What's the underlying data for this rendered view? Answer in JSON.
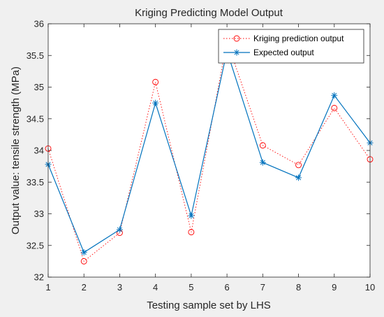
{
  "chart_data": {
    "type": "line",
    "title": "Kriging Predicting Model Output",
    "xlabel": "Testing sample set by LHS",
    "ylabel": "Output value:  tensile strength (MPa)",
    "x": [
      1,
      2,
      3,
      4,
      5,
      6,
      7,
      8,
      9,
      10
    ],
    "xlim": [
      1,
      10
    ],
    "ylim": [
      32,
      36
    ],
    "xticks": [
      "1",
      "2",
      "3",
      "4",
      "5",
      "6",
      "7",
      "8",
      "9",
      "10"
    ],
    "yticks": [
      "32",
      "32.5",
      "33",
      "33.5",
      "34",
      "34.5",
      "35",
      "35.5",
      "36"
    ],
    "grid": false,
    "legend_position": "top-right",
    "series": [
      {
        "name": "Kriging prediction output",
        "values": [
          34.03,
          32.25,
          32.7,
          35.08,
          32.71,
          35.73,
          34.08,
          33.77,
          34.67,
          33.86
        ],
        "color": "#ff0000",
        "line_style": "dotted",
        "marker": "circle"
      },
      {
        "name": "Expected output",
        "values": [
          33.78,
          32.39,
          32.75,
          34.75,
          32.97,
          35.57,
          33.81,
          33.57,
          34.87,
          34.12
        ],
        "color": "#0072bd",
        "line_style": "solid",
        "marker": "asterisk"
      }
    ]
  }
}
